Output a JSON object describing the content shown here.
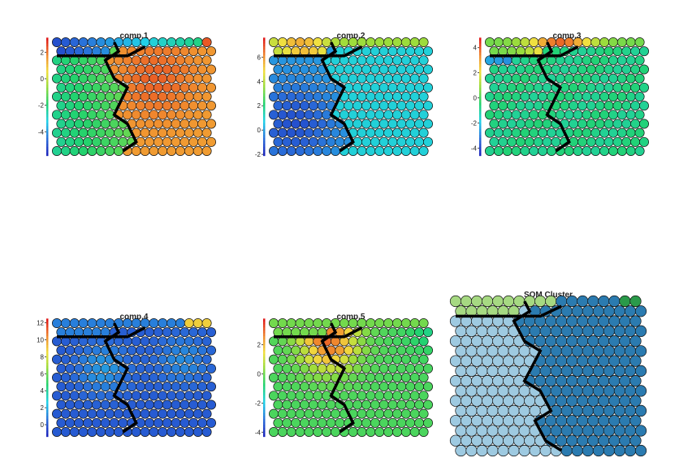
{
  "chart_data": [
    {
      "type": "heatmap",
      "title": "comp.1",
      "ticks": [
        2,
        0,
        -2,
        -4
      ],
      "range": [
        -5.8,
        3.1
      ],
      "colormap": "rainbow"
    },
    {
      "type": "heatmap",
      "title": "comp.2",
      "ticks": [
        6,
        4,
        2,
        0,
        -2
      ],
      "range": [
        -2.1,
        7.6
      ],
      "colormap": "rainbow"
    },
    {
      "type": "heatmap",
      "title": "comp.3",
      "ticks": [
        4,
        2,
        0,
        -2,
        -4
      ],
      "range": [
        -4.6,
        4.8
      ],
      "colormap": "rainbow"
    },
    {
      "type": "heatmap",
      "title": "comp.4",
      "ticks": [
        12,
        10,
        8,
        6,
        4,
        2,
        0
      ],
      "range": [
        -1.4,
        12.5
      ],
      "colormap": "rainbow"
    },
    {
      "type": "heatmap",
      "title": "comp.5",
      "ticks": [
        2,
        0,
        -2,
        -4
      ],
      "range": [
        -4.3,
        3.8
      ],
      "colormap": "rainbow"
    },
    {
      "type": "heatmap",
      "title": "SOM Cluster",
      "clusters": 4,
      "cluster_colors": [
        "#a6d982",
        "#9ecae1",
        "#2b7bb0",
        "#2a9a4a"
      ]
    }
  ]
}
